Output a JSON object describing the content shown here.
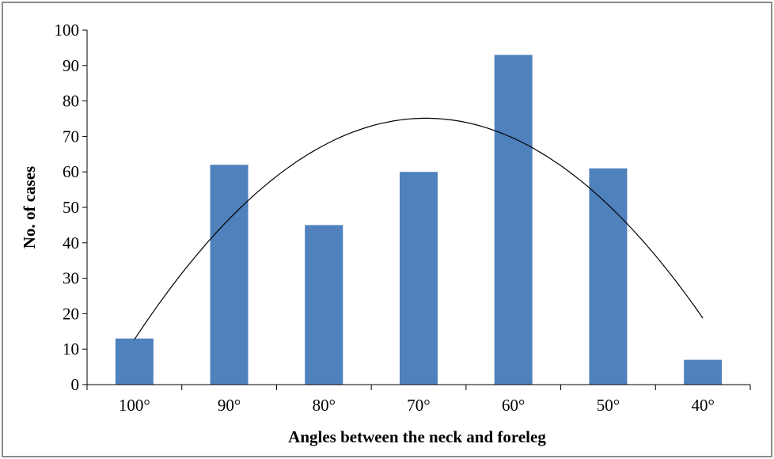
{
  "chart_data": {
    "type": "bar",
    "categories": [
      "100°",
      "90°",
      "80°",
      "70°",
      "60°",
      "50°",
      "40°"
    ],
    "values": [
      13,
      62,
      45,
      60,
      93,
      61,
      7
    ],
    "xlabel": "Angles between the neck and foreleg",
    "ylabel": "No. of cases",
    "ylim": [
      0,
      100
    ],
    "yticks": [
      0,
      10,
      20,
      30,
      40,
      50,
      60,
      70,
      80,
      90,
      100
    ],
    "grid": false,
    "legend": "none",
    "trendline": {
      "type": "polynomial",
      "order": 2
    },
    "bar_color": "#4f81bd"
  }
}
